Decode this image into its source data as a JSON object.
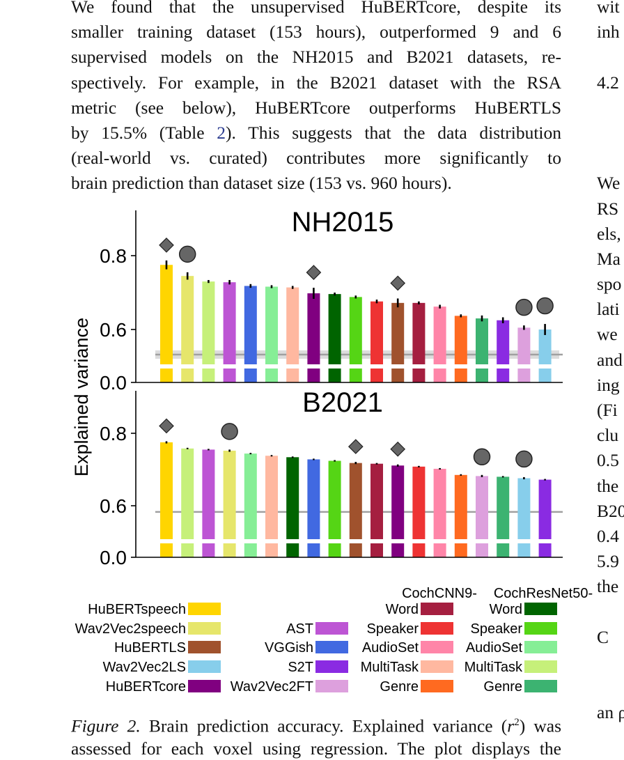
{
  "paragraph_lines": [
    "We found that the unsupervised HuBERTcore, despite its",
    "smaller training dataset (153 hours), outperformed 9 and 6",
    "supervised models on the NH2015 and B2021 datasets, re-",
    "spectively. For example, in the B2021 dataset with the RSA",
    "metric (see below), HuBERTcore outperforms HuBERTLS",
    [
      "by 15.5% (Table ",
      "2",
      "). This suggests that the data distribution"
    ],
    "(real-world vs.  curated) contributes more significantly to",
    "brain prediction than dataset size (153 vs. 960 hours)."
  ],
  "right_column_lines": [
    "wit",
    "inh",
    "",
    "4.2",
    "",
    "",
    "",
    "We",
    "RS",
    "els,",
    "Ma",
    "spo",
    "lati",
    "we",
    "and",
    "ing",
    "(Fi",
    "clu",
    "0.5",
    "the",
    "B20",
    "0.4",
    "5.9",
    "the",
    "",
    "C",
    "",
    "",
    "an ρ"
  ],
  "chart_data": {
    "type": "bar",
    "ylabel": "Explained variance",
    "panels": [
      {
        "title": "NH2015",
        "yticks": [
          "0.0",
          "0.6",
          "0.8"
        ],
        "baseline": 0.532,
        "bars": [
          {
            "model": "HuBERTspeech",
            "value": 0.775,
            "err": 0.012,
            "color": "#FFD500",
            "marker": "diamond"
          },
          {
            "model": "Wav2Vec2speech",
            "value": 0.745,
            "err": 0.01,
            "color": "#E6E66B",
            "marker": "circle"
          },
          {
            "model": "MultiTask (CochResNet50)",
            "value": 0.73,
            "err": 0.004,
            "color": "#C6F07A",
            "marker": ""
          },
          {
            "model": "AST",
            "value": 0.728,
            "err": 0.006,
            "color": "#BD55D4",
            "marker": ""
          },
          {
            "model": "VGGish",
            "value": 0.718,
            "err": 0.005,
            "color": "#4169E1",
            "marker": ""
          },
          {
            "model": "AudioSet (CochResNet50)",
            "value": 0.716,
            "err": 0.004,
            "color": "#86EE96",
            "marker": ""
          },
          {
            "model": "MultiTask (CochCNN9)",
            "value": 0.714,
            "err": 0.004,
            "color": "#FFB8A0",
            "marker": ""
          },
          {
            "model": "HuBERTcore",
            "value": 0.698,
            "err": 0.015,
            "color": "#800080",
            "marker": "diamond"
          },
          {
            "model": "Word (CochResNet50)",
            "value": 0.696,
            "err": 0.004,
            "color": "#006400",
            "marker": ""
          },
          {
            "model": "Speaker (CochResNet50)",
            "value": 0.688,
            "err": 0.004,
            "color": "#55D515",
            "marker": ""
          },
          {
            "model": "Speaker (CochCNN9)",
            "value": 0.676,
            "err": 0.005,
            "color": "#EE3333",
            "marker": ""
          },
          {
            "model": "HuBERTLS",
            "value": 0.672,
            "err": 0.012,
            "color": "#A0522D",
            "marker": "diamond"
          },
          {
            "model": "Word (CochCNN9)",
            "value": 0.672,
            "err": 0.004,
            "color": "#A51F40",
            "marker": ""
          },
          {
            "model": "AudioSet (CochCNN9)",
            "value": 0.662,
            "err": 0.005,
            "color": "#FF85A8",
            "marker": ""
          },
          {
            "model": "Genre (CochCNN9)",
            "value": 0.637,
            "err": 0.004,
            "color": "#FF6A20",
            "marker": ""
          },
          {
            "model": "Genre (CochResNet50)",
            "value": 0.63,
            "err": 0.008,
            "color": "#3CB371",
            "marker": ""
          },
          {
            "model": "S2T",
            "value": 0.625,
            "err": 0.008,
            "color": "#8A2BE2",
            "marker": ""
          },
          {
            "model": "Wav2Vec2FT",
            "value": 0.605,
            "err": 0.006,
            "color": "#DDA0DD",
            "marker": "circle"
          },
          {
            "model": "Wav2Vec2LS",
            "value": 0.6,
            "err": 0.015,
            "color": "#87CEEB",
            "marker": "circle"
          }
        ]
      },
      {
        "title": "B2021",
        "yticks": [
          "0.0",
          "0.6",
          "0.8"
        ],
        "baseline": 0.583,
        "bars": [
          {
            "model": "HuBERTspeech",
            "value": 0.775,
            "err": 0.003,
            "color": "#FFD500",
            "marker": "diamond"
          },
          {
            "model": "MultiTask (CochResNet50)",
            "value": 0.758,
            "err": 0.002,
            "color": "#C6F07A",
            "marker": ""
          },
          {
            "model": "AST",
            "value": 0.755,
            "err": 0.002,
            "color": "#BD55D4",
            "marker": ""
          },
          {
            "model": "Wav2Vec2speech",
            "value": 0.752,
            "err": 0.003,
            "color": "#E6E66B",
            "marker": "circle"
          },
          {
            "model": "AudioSet (CochResNet50)",
            "value": 0.744,
            "err": 0.002,
            "color": "#86EE96",
            "marker": ""
          },
          {
            "model": "MultiTask (CochCNN9)",
            "value": 0.738,
            "err": 0.002,
            "color": "#FFB8A0",
            "marker": ""
          },
          {
            "model": "Word (CochResNet50)",
            "value": 0.734,
            "err": 0.002,
            "color": "#006400",
            "marker": ""
          },
          {
            "model": "VGGish",
            "value": 0.728,
            "err": 0.002,
            "color": "#4169E1",
            "marker": ""
          },
          {
            "model": "Speaker (CochResNet50)",
            "value": 0.724,
            "err": 0.002,
            "color": "#55D515",
            "marker": ""
          },
          {
            "model": "HuBERTLS",
            "value": 0.718,
            "err": 0.003,
            "color": "#A0522D",
            "marker": "diamond"
          },
          {
            "model": "Word (CochCNN9)",
            "value": 0.716,
            "err": 0.002,
            "color": "#A51F40",
            "marker": ""
          },
          {
            "model": "HuBERTcore",
            "value": 0.711,
            "err": 0.003,
            "color": "#800080",
            "marker": "diamond"
          },
          {
            "model": "Speaker (CochCNN9)",
            "value": 0.708,
            "err": 0.002,
            "color": "#EE3333",
            "marker": ""
          },
          {
            "model": "AudioSet (CochCNN9)",
            "value": 0.702,
            "err": 0.002,
            "color": "#FF85A8",
            "marker": ""
          },
          {
            "model": "Genre (CochCNN9)",
            "value": 0.685,
            "err": 0.002,
            "color": "#FF6A20",
            "marker": ""
          },
          {
            "model": "Wav2Vec2FT",
            "value": 0.682,
            "err": 0.003,
            "color": "#DDA0DD",
            "marker": "circle"
          },
          {
            "model": "Genre (CochResNet50)",
            "value": 0.68,
            "err": 0.002,
            "color": "#3CB371",
            "marker": ""
          },
          {
            "model": "Wav2Vec2LS",
            "value": 0.676,
            "err": 0.003,
            "color": "#87CEEB",
            "marker": "circle"
          },
          {
            "model": "S2T",
            "value": 0.672,
            "err": 0.002,
            "color": "#8A2BE2",
            "marker": ""
          }
        ]
      }
    ],
    "legend": {
      "columns": [
        {
          "header": [],
          "items": [
            {
              "label": "HuBERTspeech",
              "color": "#FFD500"
            },
            {
              "label": "Wav2Vec2speech",
              "color": "#E6E66B"
            },
            {
              "label": "HuBERTLS",
              "color": "#A0522D"
            },
            {
              "label": "Wav2Vec2LS",
              "color": "#87CEEB"
            },
            {
              "label": "HuBERTcore",
              "color": "#800080"
            }
          ]
        },
        {
          "header": [],
          "items": [
            {
              "label": "",
              "color": ""
            },
            {
              "label": "AST",
              "color": "#BD55D4"
            },
            {
              "label": "VGGish",
              "color": "#4169E1"
            },
            {
              "label": "S2T",
              "color": "#8A2BE2"
            },
            {
              "label": "Wav2Vec2FT",
              "color": "#DDA0DD"
            }
          ]
        },
        {
          "header": [
            "CochCNN9-"
          ],
          "items": [
            {
              "label": "Word",
              "color": "#A51F40"
            },
            {
              "label": "Speaker",
              "color": "#EE3333"
            },
            {
              "label": "AudioSet",
              "color": "#FF85A8"
            },
            {
              "label": "MultiTask",
              "color": "#FFB8A0"
            },
            {
              "label": "Genre",
              "color": "#FF6A20"
            }
          ]
        },
        {
          "header": [
            "CochResNet50-"
          ],
          "items": [
            {
              "label": "Word",
              "color": "#006400"
            },
            {
              "label": "Speaker",
              "color": "#55D515"
            },
            {
              "label": "AudioSet",
              "color": "#86EE96"
            },
            {
              "label": "MultiTask",
              "color": "#C6F07A"
            },
            {
              "label": "Genre",
              "color": "#3CB371"
            }
          ]
        }
      ]
    }
  },
  "caption": {
    "label": "Figure 2.",
    "line1_rest": " Brain prediction accuracy. Explained variance (",
    "r": "r",
    "sup": "2",
    "line1_end": ") was",
    "line2": "assessed for each voxel using regression.  The plot displays the"
  }
}
